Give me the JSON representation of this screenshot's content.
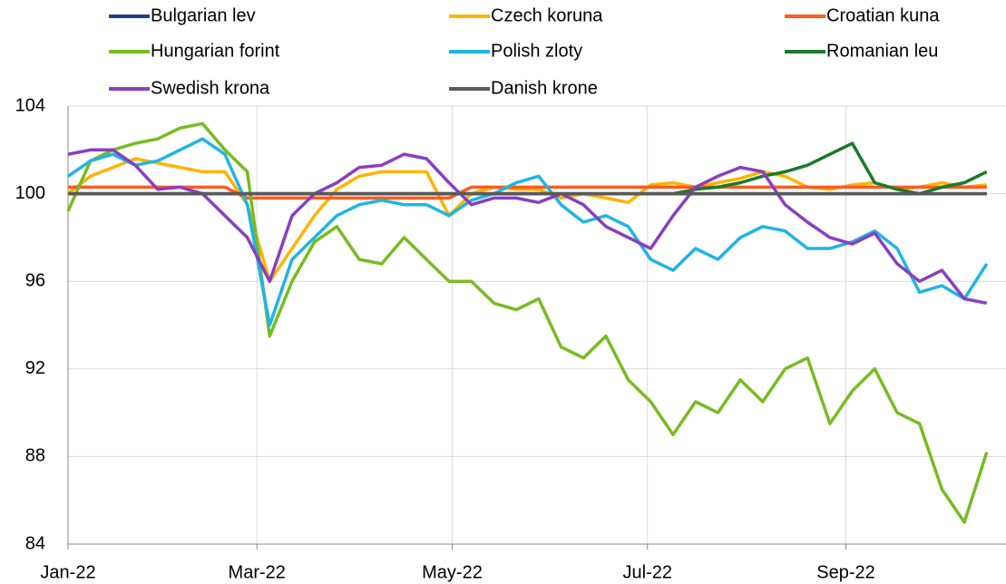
{
  "chart_data": {
    "type": "line",
    "x": [
      0,
      7,
      14,
      21,
      28,
      35,
      42,
      49,
      56,
      63,
      70,
      77,
      84,
      91,
      98,
      105,
      112,
      119,
      126,
      133,
      140,
      147,
      154,
      161,
      168,
      175,
      182,
      189,
      196,
      203,
      210,
      217,
      224,
      231,
      238,
      245,
      252,
      259,
      266,
      273,
      280,
      287
    ],
    "xlim": [
      0,
      293
    ],
    "xticks": [
      {
        "value": 0,
        "label": "Jan-22"
      },
      {
        "value": 59,
        "label": "Mar-22"
      },
      {
        "value": 120,
        "label": "May-22"
      },
      {
        "value": 181,
        "label": "Jul-22"
      },
      {
        "value": 243,
        "label": "Sep-22"
      }
    ],
    "ylim": [
      84,
      104
    ],
    "yticks": [
      84,
      88,
      92,
      96,
      100,
      104
    ],
    "grid": true,
    "legend": "top",
    "series": [
      {
        "name": "Bulgarian lev",
        "color": "#1f3d8f",
        "values": [
          100,
          100,
          100,
          100,
          100,
          100,
          100,
          100,
          100,
          100,
          100,
          100,
          100,
          100,
          100,
          100,
          100,
          100,
          100,
          100,
          100,
          100,
          100,
          100,
          100,
          100,
          100,
          100,
          100,
          100,
          100,
          100,
          100,
          100,
          100,
          100,
          100,
          100,
          100,
          100,
          100,
          100
        ]
      },
      {
        "name": "Czech koruna",
        "color": "#ffb300",
        "values": [
          100,
          100.8,
          101.2,
          101.6,
          101.4,
          101.2,
          101,
          101,
          99.5,
          96,
          97.5,
          99,
          100.2,
          100.8,
          101,
          101,
          101,
          99,
          100,
          100.3,
          100.2,
          100.2,
          99.8,
          100,
          99.8,
          99.6,
          100.4,
          100.5,
          100.3,
          100.5,
          100.7,
          101,
          100.8,
          100.3,
          100.2,
          100.4,
          100.5,
          100.2,
          100.3,
          100.5,
          100.3,
          100.4
        ]
      },
      {
        "name": "Croatian kuna",
        "color": "#ff5a1f",
        "values": [
          100.3,
          100.3,
          100.3,
          100.3,
          100.3,
          100.3,
          100.3,
          100.3,
          99.8,
          99.8,
          99.8,
          99.8,
          99.8,
          99.8,
          99.8,
          99.8,
          99.8,
          99.8,
          100.3,
          100.3,
          100.3,
          100.3,
          100.3,
          100.3,
          100.3,
          100.3,
          100.3,
          100.3,
          100.3,
          100.3,
          100.3,
          100.3,
          100.3,
          100.3,
          100.3,
          100.3,
          100.3,
          100.3,
          100.3,
          100.3,
          100.3,
          100.3
        ]
      },
      {
        "name": "Hungarian forint",
        "color": "#77bc1f",
        "values": [
          99.2,
          101.5,
          102,
          102.3,
          102.5,
          103,
          103.2,
          102,
          101,
          93.5,
          96,
          97.8,
          98.5,
          97,
          96.8,
          98,
          97,
          96,
          96,
          95,
          94.7,
          95.2,
          93,
          92.5,
          93.5,
          91.5,
          90.5,
          89,
          90.5,
          90,
          91.5,
          90.5,
          92,
          92.5,
          89.5,
          91,
          92,
          90,
          89.5,
          86.5,
          85,
          88.2
        ]
      },
      {
        "name": "Polish zloty",
        "color": "#1fb4e6",
        "values": [
          100.8,
          101.5,
          101.8,
          101.3,
          101.5,
          102,
          102.5,
          101.8,
          99.5,
          94,
          97,
          98,
          99,
          99.5,
          99.7,
          99.5,
          99.5,
          99,
          99.7,
          100,
          100.5,
          100.8,
          99.5,
          98.7,
          99,
          98.5,
          97,
          96.5,
          97.5,
          97,
          98,
          98.5,
          98.3,
          97.5,
          97.5,
          97.8,
          98.3,
          97.5,
          95.5,
          95.8,
          95.2,
          96.8
        ]
      },
      {
        "name": "Romanian leu",
        "color": "#1a7a2a",
        "values": [
          100,
          100,
          100,
          100,
          100,
          100,
          100,
          100,
          100,
          100,
          100,
          100,
          100,
          100,
          100,
          100,
          100,
          100,
          100,
          100,
          100,
          100,
          100,
          100,
          100,
          100,
          100,
          100,
          100.2,
          100.3,
          100.5,
          100.8,
          101,
          101.3,
          101.8,
          102.3,
          100.5,
          100.2,
          100,
          100.3,
          100.5,
          101
        ]
      },
      {
        "name": "Swedish krona",
        "color": "#8a3ec0",
        "values": [
          101.8,
          102,
          102,
          101.3,
          100.2,
          100.3,
          100,
          99,
          98,
          96,
          99,
          100,
          100.5,
          101.2,
          101.3,
          101.8,
          101.6,
          100.5,
          99.5,
          99.8,
          99.8,
          99.6,
          100,
          99.5,
          98.5,
          98,
          97.5,
          99,
          100.3,
          100.8,
          101.2,
          101,
          99.5,
          98.7,
          98,
          97.7,
          98.2,
          96.8,
          96,
          96.5,
          95.2,
          95
        ]
      },
      {
        "name": "Danish krone",
        "color": "#595959",
        "values": [
          100,
          100,
          100,
          100,
          100,
          100,
          100,
          100,
          100,
          100,
          100,
          100,
          100,
          100,
          100,
          100,
          100,
          100,
          100,
          100,
          100,
          100,
          100,
          100,
          100,
          100,
          100,
          100,
          100,
          100,
          100,
          100,
          100,
          100,
          100,
          100,
          100,
          100,
          100,
          100,
          100,
          100
        ]
      }
    ]
  }
}
